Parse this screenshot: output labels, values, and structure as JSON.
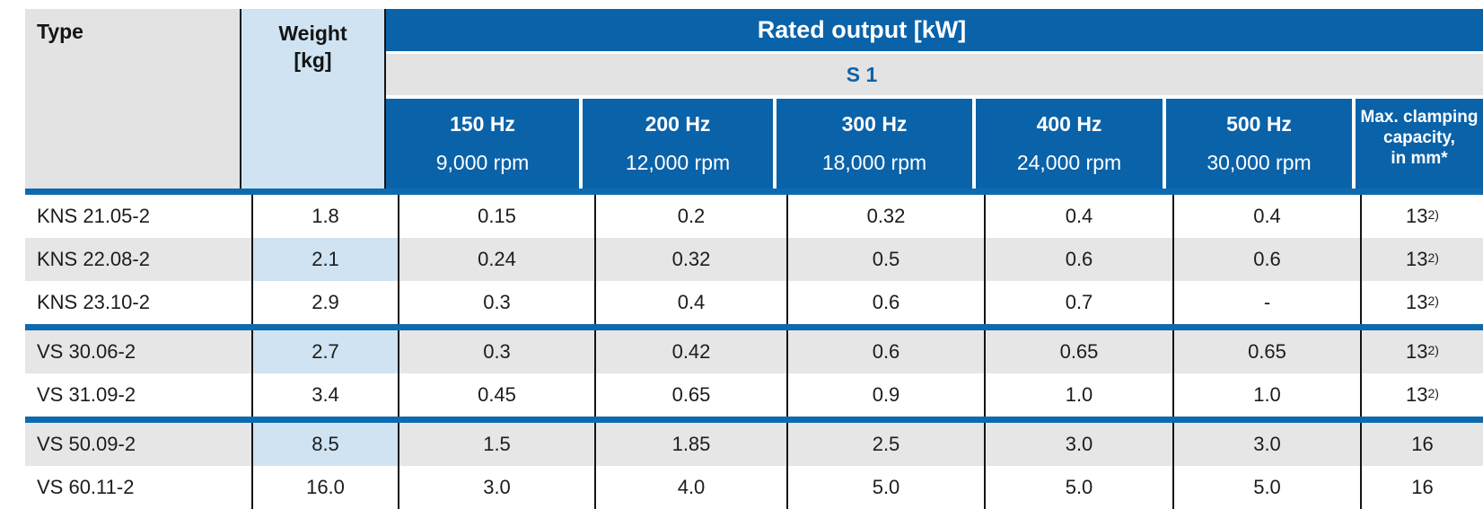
{
  "header": {
    "type_label": "Type",
    "weight_label_line1": "Weight",
    "weight_label_line2": "[kg]",
    "rated_output_label": "Rated output [kW]",
    "duty_label": "S 1",
    "freq_columns": [
      {
        "hz": "150 Hz",
        "rpm": "9,000 rpm"
      },
      {
        "hz": "200 Hz",
        "rpm": "12,000 rpm"
      },
      {
        "hz": "300 Hz",
        "rpm": "18,000 rpm"
      },
      {
        "hz": "400 Hz",
        "rpm": "24,000 rpm"
      },
      {
        "hz": "500 Hz",
        "rpm": "30,000 rpm"
      }
    ],
    "clamping_label_lines": [
      "Max. clamping",
      "capacity,",
      "in mm*"
    ]
  },
  "rows": [
    {
      "type": "KNS 21.05-2",
      "weight": "1.8",
      "outputs": [
        "0.15",
        "0.2",
        "0.32",
        "0.4",
        "0.4"
      ],
      "clamping": "13",
      "clamping_sup": "2)"
    },
    {
      "type": "KNS 22.08-2",
      "weight": "2.1",
      "outputs": [
        "0.24",
        "0.32",
        "0.5",
        "0.6",
        "0.6"
      ],
      "clamping": "13",
      "clamping_sup": "2)"
    },
    {
      "type": "KNS 23.10-2",
      "weight": "2.9",
      "outputs": [
        "0.3",
        "0.4",
        "0.6",
        "0.7",
        "-"
      ],
      "clamping": "13",
      "clamping_sup": "2)"
    },
    {
      "type": "VS 30.06-2",
      "weight": "2.7",
      "outputs": [
        "0.3",
        "0.42",
        "0.6",
        "0.65",
        "0.65"
      ],
      "clamping": "13",
      "clamping_sup": "2)"
    },
    {
      "type": "VS 31.09-2",
      "weight": "3.4",
      "outputs": [
        "0.45",
        "0.65",
        "0.9",
        "1.0",
        "1.0"
      ],
      "clamping": "13",
      "clamping_sup": "2)"
    },
    {
      "type": "VS 50.09-2",
      "weight": "8.5",
      "outputs": [
        "1.5",
        "1.85",
        "2.5",
        "3.0",
        "3.0"
      ],
      "clamping": "16",
      "clamping_sup": ""
    },
    {
      "type": "VS 60.11-2",
      "weight": "16.0",
      "outputs": [
        "3.0",
        "4.0",
        "5.0",
        "5.0",
        "5.0"
      ],
      "clamping": "16",
      "clamping_sup": ""
    }
  ],
  "group_separators_after_rows": [
    3,
    5
  ],
  "colors": {
    "brand_blue": "#0a62a9",
    "separator_blue": "#0e6aae",
    "header_gray": "#e3e3e4",
    "row_gray": "#e6e6e7",
    "light_blue": "#cfe3f2",
    "grid_black": "#141414"
  }
}
